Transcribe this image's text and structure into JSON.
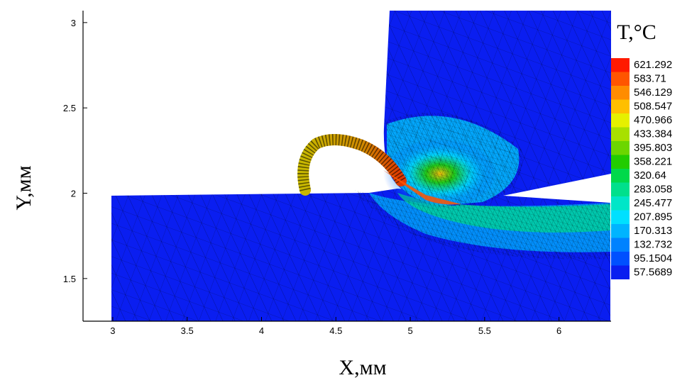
{
  "chart_data": {
    "type": "heatmap",
    "xlabel": "X,мм",
    "ylabel": "Y,мм",
    "xlim": [
      2.8,
      6.35
    ],
    "ylim": [
      1.25,
      3.07
    ],
    "x_ticks": [
      3,
      3.5,
      4,
      4.5,
      5,
      5.5,
      6
    ],
    "x_tick_labels": [
      "3",
      "3.5",
      "4",
      "4.5",
      "5",
      "5.5",
      "6"
    ],
    "y_ticks": [
      1.5,
      2,
      2.5,
      3
    ],
    "y_tick_labels": [
      "1.5",
      "2",
      "2.5",
      "3"
    ],
    "colorbar": {
      "title": "T,°C",
      "levels": [
        "621.292",
        "583.71",
        "546.129",
        "508.547",
        "470.966",
        "433.384",
        "395.803",
        "358.221",
        "320.64",
        "283.058",
        "245.477",
        "207.895",
        "170.313",
        "132.732",
        "95.1504",
        "57.5689"
      ],
      "colors": [
        "#ff1a00",
        "#ff5500",
        "#ff8c00",
        "#ffbf00",
        "#e6f000",
        "#a8e000",
        "#6cd600",
        "#22cc00",
        "#00d94a",
        "#00e08c",
        "#00e6c8",
        "#00e0ff",
        "#00b4ff",
        "#0082ff",
        "#0050ff",
        "#0a1ef0"
      ]
    },
    "grid": false
  }
}
